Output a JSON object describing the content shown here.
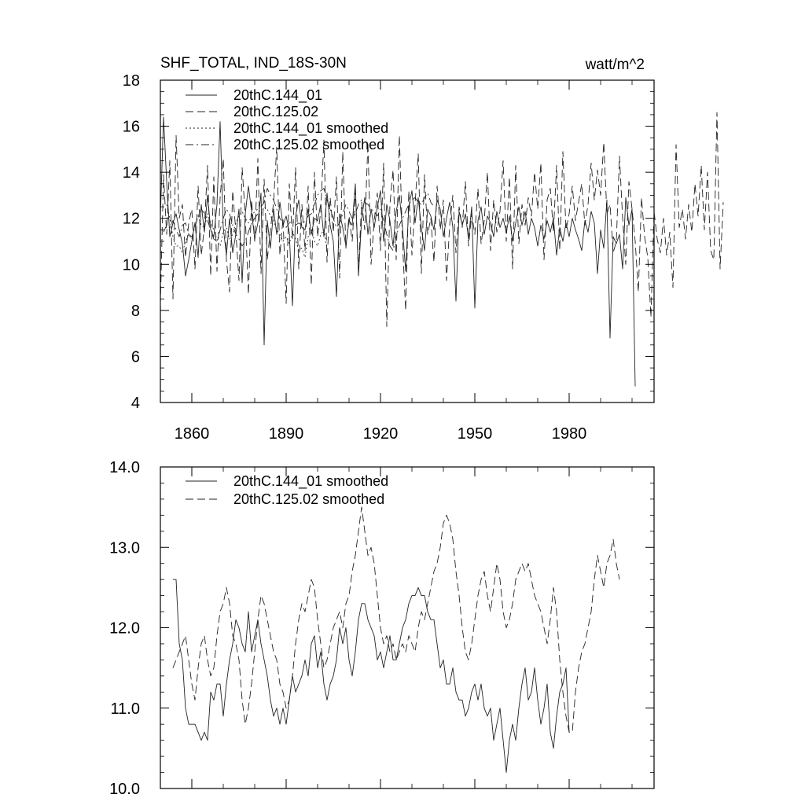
{
  "chart_data": [
    {
      "type": "line",
      "title": "SHF_TOTAL, IND_18S-30N",
      "units_label": "watt/m^2",
      "xlim": [
        1850,
        2007
      ],
      "ylim": [
        4,
        18
      ],
      "xticks": [
        1860,
        1890,
        1920,
        1950,
        1980
      ],
      "xtick_labels": [
        "1860",
        "1890",
        "1920",
        "1950",
        "1980"
      ],
      "yticks": [
        4,
        6,
        8,
        10,
        12,
        14,
        16,
        18
      ],
      "ytick_labels": [
        "4",
        "6",
        "8",
        "10",
        "12",
        "14",
        "16",
        "18"
      ],
      "legend_position": "top-left",
      "series": [
        {
          "name": "20thC.144_01",
          "style": "solid",
          "start": 1850,
          "values": [
            12.0,
            16.4,
            13.6,
            11.2,
            11.8,
            12.2,
            11.5,
            10.9,
            9.5,
            10.2,
            11.0,
            11.8,
            10.3,
            12.6,
            11.4,
            13.0,
            11.5,
            11.2,
            12.6,
            16.2,
            11.6,
            10.4,
            12.0,
            10.5,
            11.3,
            12.4,
            9.2,
            12.2,
            13.4,
            12.3,
            11.1,
            11.8,
            13.1,
            6.5,
            11.9,
            10.7,
            12.4,
            11.3,
            12.7,
            11.7,
            12.1,
            11.4,
            8.2,
            12.1,
            12.8,
            11.6,
            11.5,
            12.4,
            11.3,
            12.0,
            11.9,
            12.6,
            11.2,
            13.1,
            11.7,
            11.0,
            8.6,
            12.2,
            11.6,
            10.8,
            11.9,
            11.7,
            13.5,
            9.5,
            12.0,
            12.9,
            11.3,
            12.4,
            11.6,
            12.5,
            13.2,
            11.0,
            12.6,
            11.9,
            10.8,
            12.3,
            13.0,
            11.6,
            9.7,
            12.5,
            13.2,
            11.8,
            12.9,
            11.6,
            10.6,
            12.4,
            12.1,
            11.5,
            12.8,
            12.4,
            11.2,
            12.0,
            12.7,
            11.6,
            8.4,
            12.3,
            11.7,
            12.2,
            11.1,
            12.5,
            8.1,
            11.9,
            12.5,
            11.3,
            12.1,
            11.8,
            11.2,
            12.3,
            11.6,
            12.0,
            11.4,
            12.1,
            11.0,
            11.8,
            12.5,
            11.7,
            12.3,
            11.3,
            12.0,
            11.6,
            10.8,
            11.7,
            11.1,
            11.9,
            11.4,
            12.0,
            10.4,
            11.6,
            11.0,
            11.8,
            11.2,
            12.0,
            11.5,
            11.1,
            10.6,
            11.9,
            11.4,
            12.3,
            11.8,
            9.6,
            11.5,
            10.7,
            12.8,
            6.8,
            11.2,
            10.9,
            11.3,
            9.8,
            12.9,
            11.7,
            12.4,
            4.7
          ]
        },
        {
          "name": "20thC.125.02",
          "style": "dash",
          "start": 1850,
          "values": [
            8.2,
            13.9,
            11.3,
            14.5,
            8.5,
            15.6,
            12.0,
            12.6,
            10.3,
            11.8,
            12.4,
            9.8,
            13.4,
            10.4,
            11.6,
            14.3,
            9.5,
            13.8,
            9.7,
            12.9,
            14.6,
            10.2,
            8.8,
            13.2,
            11.4,
            9.3,
            14.2,
            12.1,
            8.7,
            12.8,
            11.0,
            14.6,
            9.6,
            13.7,
            10.2,
            11.5,
            12.7,
            15.1,
            10.4,
            12.0,
            8.3,
            13.5,
            11.1,
            14.2,
            9.8,
            12.6,
            10.6,
            13.4,
            9.1,
            14.0,
            11.2,
            12.3,
            15.4,
            10.1,
            12.9,
            11.4,
            13.8,
            9.4,
            14.9,
            10.7,
            12.1,
            11.0,
            13.2,
            9.7,
            12.7,
            11.5,
            15.3,
            10.0,
            11.9,
            13.1,
            10.6,
            14.4,
            7.3,
            12.6,
            14.1,
            10.2,
            15.6,
            11.0,
            8.0,
            13.2,
            10.4,
            12.6,
            14.8,
            9.6,
            13.9,
            11.3,
            12.0,
            10.1,
            13.4,
            11.5,
            12.8,
            9.3,
            11.7,
            13.0,
            10.5,
            12.5,
            11.6,
            13.6,
            10.8,
            12.2,
            11.3,
            13.3,
            10.9,
            11.9,
            14.0,
            10.6,
            12.8,
            11.4,
            12.3,
            14.5,
            11.0,
            13.8,
            9.8,
            14.3,
            10.9,
            12.6,
            11.7,
            12.9,
            12.1,
            14.0,
            12.4,
            14.4,
            10.2,
            12.8,
            13.3,
            11.4,
            14.3,
            10.6,
            14.9,
            11.5,
            12.2,
            13.4,
            11.9,
            12.7,
            13.5,
            11.7,
            12.6,
            14.4,
            12.8,
            14.1,
            13.0,
            15.3,
            12.2,
            12.6,
            10.5,
            11.0,
            14.7,
            12.0,
            10.0,
            13.6,
            12.4,
            11.0,
            8.8,
            12.9,
            11.2,
            10.3,
            7.7,
            12.3,
            11.1,
            10.5,
            12.0,
            10.4,
            11.4,
            9.0,
            15.2,
            11.6,
            12.4,
            11.1,
            12.6,
            11.4,
            13.5,
            12.1,
            14.3,
            11.5,
            14.0,
            10.6,
            10.2,
            16.6,
            9.8,
            12.7
          ]
        },
        {
          "name": "20thC.144_01 smoothed",
          "style": "dot",
          "start": 1852,
          "values": [
            12.6,
            12.0,
            11.2,
            10.8,
            10.8,
            10.5,
            11.0,
            11.3,
            11.1,
            11.8,
            12.1,
            11.7,
            11.6,
            12.2,
            11.8,
            11.5,
            11.1,
            10.8,
            11.4,
            11.6,
            11.1,
            11.3,
            11.8,
            12.1,
            12.3,
            12.0,
            11.8,
            12.1,
            12.3,
            12.4,
            12.2,
            12.5,
            12.4,
            12.1,
            11.9,
            11.5,
            11.3,
            11.0,
            11.2,
            10.9,
            11.4,
            11.1,
            10.6,
            10.7,
            10.3,
            11.2,
            11.5,
            11.0,
            10.8,
            11.3,
            11.5,
            10.7
          ]
        },
        {
          "name": "20thC.125.02 smoothed",
          "style": "dashdot",
          "start": 1851,
          "values": [
            11.4,
            11.7,
            11.6,
            11.9,
            11.5,
            11.2,
            11.7,
            11.8,
            11.3,
            11.2,
            11.6,
            12.1,
            12.4,
            12.2,
            11.9,
            11.5,
            11.1,
            11.0,
            11.5,
            12.0,
            12.4,
            12.2,
            11.7,
            11.3,
            11.1,
            10.8,
            11.0,
            11.4,
            11.8,
            12.0,
            12.2,
            12.5,
            12.7,
            13.3,
            13.0,
            12.8,
            12.4,
            12.0,
            11.8,
            11.6,
            11.8,
            11.9,
            11.7,
            11.8,
            11.7,
            11.9,
            12.1,
            12.2,
            12.6,
            13.0,
            13.2,
            13.3,
            12.8,
            12.4,
            12.0,
            11.6,
            11.8,
            12.2,
            12.6,
            12.3,
            12.0,
            12.2,
            12.6,
            12.8,
            12.7,
            12.6,
            12.4,
            12.3,
            12.1,
            12.4,
            11.9,
            11.3,
            10.8,
            10.6,
            11.2,
            11.7,
            12.0,
            12.3,
            12.6,
            12.8,
            12.9,
            12.7,
            12.6,
            12.9,
            13.1,
            12.7,
            12.5
          ]
        }
      ]
    },
    {
      "type": "line",
      "title": "",
      "xlim": [
        1850,
        2007
      ],
      "ylim": [
        10.0,
        14.0
      ],
      "xticks": [
        1860,
        1890,
        1920,
        1950,
        1980
      ],
      "yticks": [
        10.0,
        11.0,
        12.0,
        13.0,
        14.0
      ],
      "ytick_labels": [
        "10.0",
        "11.0",
        "12.0",
        "13.0",
        "14.0"
      ],
      "legend_position": "top-left",
      "series": [
        {
          "name": "20thC.144_01 smoothed",
          "style": "solid",
          "start": 1854,
          "values": [
            12.6,
            12.6,
            11.8,
            11.6,
            11.0,
            10.8,
            10.8,
            10.8,
            10.7,
            10.6,
            10.7,
            10.6,
            11.2,
            11.1,
            11.3,
            11.3,
            10.9,
            11.3,
            11.6,
            11.8,
            12.1,
            12.0,
            11.8,
            11.7,
            12.2,
            11.7,
            11.9,
            12.1,
            11.8,
            11.6,
            11.4,
            11.1,
            10.9,
            11.0,
            10.8,
            11.0,
            10.8,
            11.1,
            11.4,
            11.2,
            11.3,
            11.4,
            11.6,
            11.4,
            11.8,
            11.9,
            11.5,
            11.7,
            11.3,
            11.1,
            11.3,
            11.4,
            11.6,
            12.0,
            11.8,
            12.0,
            11.6,
            11.4,
            11.7,
            12.1,
            12.3,
            12.3,
            12.1,
            12.0,
            11.9,
            11.6,
            11.7,
            11.5,
            11.7,
            11.9,
            11.6,
            11.6,
            11.8,
            12.0,
            12.1,
            12.3,
            12.4,
            12.4,
            12.5,
            12.4,
            12.4,
            12.2,
            12.1,
            12.1,
            11.8,
            11.5,
            11.6,
            11.3,
            11.3,
            11.5,
            11.2,
            11.1,
            11.1,
            10.9,
            11.0,
            11.2,
            11.3,
            11.1,
            11.3,
            11.0,
            10.9,
            11.0,
            10.6,
            10.8,
            11.0,
            10.6,
            10.2,
            10.6,
            10.8,
            10.6,
            11.0,
            11.3,
            11.5,
            11.1,
            11.2,
            11.5,
            11.1,
            10.8,
            11.0,
            11.3,
            10.7,
            10.5,
            10.9,
            11.2,
            11.3,
            11.5,
            10.7
          ]
        },
        {
          "name": "20thC.125.02 smoothed",
          "style": "dash",
          "start": 1854,
          "values": [
            11.5,
            11.6,
            11.7,
            11.8,
            11.9,
            11.6,
            11.3,
            11.1,
            11.5,
            11.8,
            11.9,
            11.6,
            11.4,
            11.5,
            11.9,
            12.2,
            12.3,
            12.5,
            12.3,
            11.9,
            11.8,
            11.6,
            11.1,
            10.8,
            11.0,
            11.3,
            11.7,
            12.1,
            12.4,
            12.3,
            12.1,
            11.9,
            11.7,
            11.6,
            11.3,
            11.2,
            11.0,
            11.1,
            11.4,
            11.8,
            12.1,
            12.3,
            12.2,
            12.4,
            12.6,
            12.5,
            12.1,
            11.8,
            11.5,
            11.6,
            11.8,
            12.0,
            12.1,
            12.2,
            12.0,
            12.3,
            12.4,
            12.7,
            12.9,
            13.2,
            13.5,
            13.2,
            12.9,
            13.0,
            12.8,
            12.4,
            12.0,
            11.8,
            11.9,
            11.7,
            11.8,
            11.6,
            11.7,
            11.8,
            11.7,
            11.9,
            11.8,
            11.7,
            12.0,
            12.2,
            12.1,
            12.3,
            12.5,
            12.7,
            12.8,
            13.0,
            13.3,
            13.4,
            13.3,
            13.1,
            12.7,
            12.4,
            12.0,
            11.7,
            11.6,
            11.8,
            12.1,
            12.4,
            12.6,
            12.7,
            12.4,
            12.2,
            12.5,
            12.8,
            12.6,
            12.2,
            12.0,
            12.1,
            12.3,
            12.6,
            12.7,
            12.8,
            12.7,
            12.8,
            12.6,
            12.4,
            12.3,
            12.2,
            12.0,
            11.8,
            12.1,
            12.5,
            12.2,
            11.6,
            11.2,
            10.9,
            10.7,
            10.7,
            11.2,
            11.5,
            11.7,
            11.8,
            12.0,
            12.2,
            12.6,
            12.9,
            12.7,
            12.5,
            12.8,
            12.9,
            13.1,
            12.8,
            12.6
          ]
        }
      ]
    }
  ]
}
